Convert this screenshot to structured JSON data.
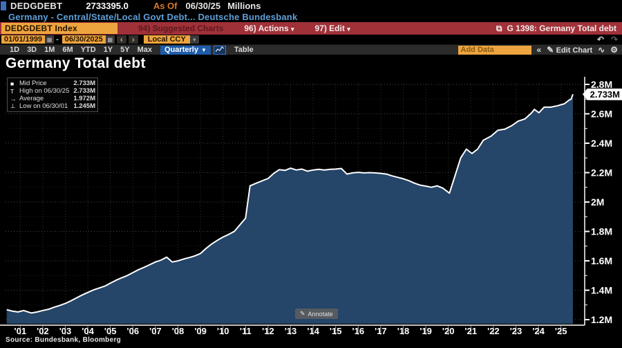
{
  "header": {
    "ticker": "DEDGDEBT",
    "last_value": "2733395.0",
    "as_of_label": "As Of",
    "as_of_date": "06/30/25",
    "units": "Millions",
    "description": "Germany - Central/State/Local Govt Debt... Deutsche Bundesbank"
  },
  "menu_bar": {
    "security_box": "DEDGDEBT Index",
    "suggested_charts_label": "94) Suggested Charts",
    "actions_label": "96) Actions",
    "edit_label": "97) Edit",
    "caret": "▾",
    "export_icon": "⧉",
    "chart_tag": "G 1398: Germany Total debt"
  },
  "toolbar": {
    "date_from": "01/01/1999",
    "date_to": "06/30/2025",
    "range_separator": "-",
    "calendar_icon": "▦",
    "prev_arrow": "‹",
    "next_arrow": "›",
    "currency": "Local CCY",
    "dropdown_caret": "▾",
    "undo_icon": "↶",
    "redo_icon": "↷",
    "ranges": [
      "1D",
      "3D",
      "1M",
      "6M",
      "YTD",
      "1Y",
      "5Y",
      "Max"
    ],
    "period_selector": "Quarterly",
    "period_caret": "▼",
    "table_label": "Table",
    "add_data_placeholder": "Add Data",
    "collapse_icon": "«",
    "pencil_icon": "✎",
    "edit_chart_label": "Edit Chart",
    "draw_icon": "∿",
    "gear_icon": "⚙"
  },
  "chart": {
    "title": "Germany Total debt",
    "legend": {
      "rows": [
        {
          "icon": "■",
          "label": "Mid Price",
          "value": "2.733M"
        },
        {
          "icon": "T",
          "label": "High on 06/30/25",
          "value": "2.733M"
        },
        {
          "icon": "→",
          "label": "Average",
          "value": "1.972M"
        },
        {
          "icon": "⊥",
          "label": "Low on 06/30/01",
          "value": "1.245M"
        }
      ]
    },
    "last_price_label": "2.733M",
    "annotate_icon": "✎",
    "annotate_label": "Annotate",
    "source": "Source: Bundesbank, Bloomberg"
  },
  "chart_data": {
    "type": "area",
    "title": "Germany Total debt",
    "unit": "M",
    "line_color": "#ffffff",
    "fill_color": "#254569",
    "x": [
      2000.4,
      2000.65,
      2000.9,
      2001.15,
      2001.4,
      2001.5,
      2001.75,
      2002,
      2002.25,
      2002.5,
      2002.75,
      2003,
      2003.25,
      2003.5,
      2003.75,
      2004,
      2004.25,
      2004.5,
      2004.75,
      2005,
      2005.25,
      2005.5,
      2005.75,
      2006,
      2006.25,
      2006.5,
      2006.75,
      2007,
      2007.25,
      2007.5,
      2007.75,
      2008,
      2008.25,
      2008.5,
      2008.75,
      2009,
      2009.25,
      2009.5,
      2009.75,
      2010,
      2010.25,
      2010.5,
      2010.75,
      2011,
      2011.2,
      2011.5,
      2011.75,
      2012,
      2012.25,
      2012.5,
      2012.75,
      2013,
      2013.25,
      2013.5,
      2013.75,
      2014,
      2014.25,
      2014.5,
      2014.75,
      2015,
      2015.25,
      2015.5,
      2015.75,
      2016,
      2016.25,
      2016.5,
      2016.75,
      2017,
      2017.25,
      2017.5,
      2017.75,
      2018,
      2018.25,
      2018.5,
      2018.75,
      2019,
      2019.25,
      2019.5,
      2019.75,
      2020.05,
      2020.3,
      2020.55,
      2020.8,
      2021.05,
      2021.3,
      2021.55,
      2021.9,
      2022.2,
      2022.5,
      2022.8,
      2023.1,
      2023.4,
      2023.7,
      2023.82,
      2024.02,
      2024.25,
      2024.55,
      2024.85,
      2025.15,
      2025.35,
      2025.45,
      2025.53
    ],
    "values": [
      1.268,
      1.258,
      1.252,
      1.262,
      1.25,
      1.245,
      1.252,
      1.262,
      1.27,
      1.284,
      1.296,
      1.31,
      1.328,
      1.348,
      1.368,
      1.385,
      1.402,
      1.415,
      1.428,
      1.448,
      1.468,
      1.484,
      1.5,
      1.52,
      1.54,
      1.556,
      1.574,
      1.592,
      1.605,
      1.625,
      1.592,
      1.6,
      1.612,
      1.622,
      1.634,
      1.65,
      1.685,
      1.715,
      1.74,
      1.762,
      1.78,
      1.8,
      1.845,
      1.89,
      2.11,
      2.13,
      2.145,
      2.16,
      2.195,
      2.22,
      2.215,
      2.23,
      2.218,
      2.224,
      2.21,
      2.218,
      2.222,
      2.218,
      2.222,
      2.224,
      2.228,
      2.19,
      2.198,
      2.202,
      2.198,
      2.2,
      2.198,
      2.195,
      2.19,
      2.178,
      2.168,
      2.158,
      2.145,
      2.128,
      2.115,
      2.108,
      2.1,
      2.11,
      2.095,
      2.06,
      2.18,
      2.3,
      2.36,
      2.33,
      2.36,
      2.42,
      2.448,
      2.488,
      2.495,
      2.518,
      2.55,
      2.565,
      2.607,
      2.63,
      2.607,
      2.645,
      2.645,
      2.655,
      2.668,
      2.692,
      2.7,
      2.733
    ],
    "last_value": 2.733,
    "x_tick_years": [
      2001,
      2002,
      2003,
      2004,
      2005,
      2006,
      2007,
      2008,
      2009,
      2010,
      2011,
      2012,
      2013,
      2014,
      2015,
      2016,
      2017,
      2018,
      2019,
      2020,
      2021,
      2022,
      2023,
      2024,
      2025
    ],
    "x_tick_labels": [
      "'01",
      "'02",
      "'03",
      "'04",
      "'05",
      "'06",
      "'07",
      "'08",
      "'09",
      "'10",
      "'11",
      "'12",
      "'13",
      "'14",
      "'15",
      "'16",
      "'17",
      "'18",
      "'19",
      "'20",
      "'21",
      "'22",
      "'23",
      "'24",
      "'25"
    ],
    "y_tick_values": [
      1.2,
      1.4,
      1.6,
      1.8,
      2.0,
      2.2,
      2.4,
      2.6,
      2.8
    ],
    "y_tick_labels": [
      "1.2M",
      "1.4M",
      "1.6M",
      "1.8M",
      "2M",
      "2.2M",
      "2.4M",
      "2.6M",
      "2.8M"
    ],
    "y_minor_step": 0.1,
    "ylim": [
      1.2,
      2.8
    ],
    "xlim": [
      2000.35,
      2025.55
    ],
    "grid": "dotted",
    "legend_position": "top-left"
  }
}
